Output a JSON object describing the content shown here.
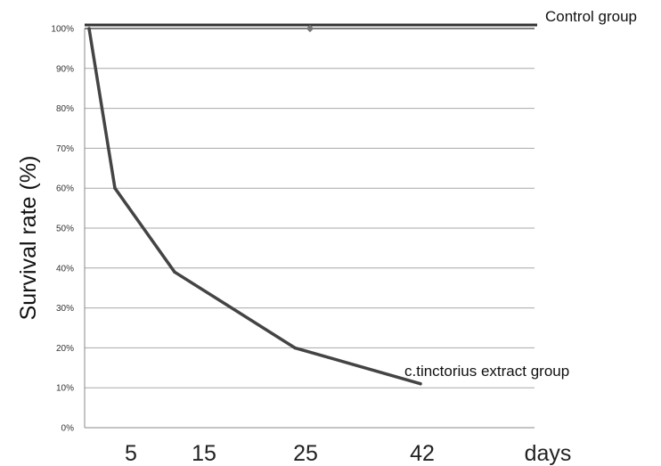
{
  "chart_data": {
    "type": "line",
    "ylabel": "Survival rate (%)",
    "y_tick_labels": [
      "0%",
      "10%",
      "20%",
      "30%",
      "40%",
      "50%",
      "60%",
      "70%",
      "80%",
      "90%",
      "100%"
    ],
    "ylim": [
      0,
      100
    ],
    "grid": true,
    "x_tick_labels": [
      "5",
      "15",
      "25",
      "42",
      "days"
    ],
    "series": [
      {
        "name": "Control group",
        "color": "#333333",
        "points": [
          {
            "day": 0,
            "value": 100
          },
          {
            "day": 42,
            "value": 100
          }
        ]
      },
      {
        "name": "c.tinctorius extract group",
        "color": "#444444",
        "points": [
          {
            "day": 0,
            "value": 100
          },
          {
            "day": 2,
            "value": 60
          },
          {
            "day": 7,
            "value": 39
          },
          {
            "day": 18,
            "value": 20
          },
          {
            "day": 29,
            "value": 11
          }
        ]
      }
    ],
    "marker": {
      "day": 18,
      "value": 100,
      "color": "#777777"
    }
  }
}
